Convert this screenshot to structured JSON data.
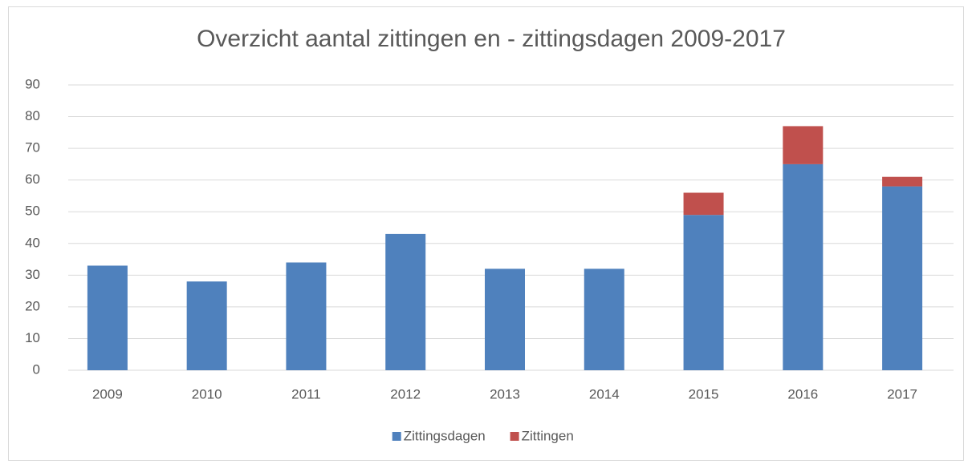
{
  "chart_data": {
    "type": "stacked-bar",
    "title": "Overzicht aantal zittingen en - zittingsdagen 2009-2017",
    "categories": [
      "2009",
      "2010",
      "2011",
      "2012",
      "2013",
      "2014",
      "2015",
      "2016",
      "2017"
    ],
    "series": [
      {
        "name": "Zittingsdagen",
        "color": "#4f81bd",
        "values": [
          33,
          28,
          34,
          43,
          32,
          32,
          49,
          65,
          58
        ]
      },
      {
        "name": "Zittingen",
        "color": "#c0504d",
        "values": [
          0,
          0,
          0,
          0,
          0,
          0,
          7,
          12,
          3
        ]
      }
    ],
    "ylim": [
      0,
      90
    ],
    "yticks": [
      0,
      10,
      20,
      30,
      40,
      50,
      60,
      70,
      80,
      90
    ],
    "grid": true,
    "legend": "bottom"
  }
}
